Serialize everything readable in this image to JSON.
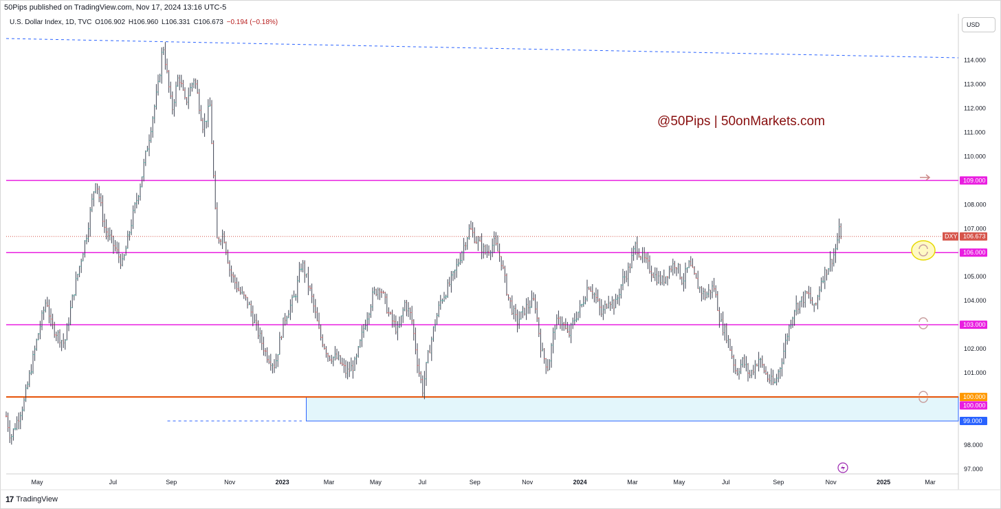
{
  "header": {
    "published_line": "50Pips published on TradingView.com, Nov 17, 2024 13:16 UTC-5"
  },
  "legend": {
    "symbol_line": "U.S. Dollar Index, 1D, TVC",
    "open": "O106.902",
    "high": "H106.960",
    "low": "L106.331",
    "close": "C106.673",
    "change": "−0.194 (−0.18%)"
  },
  "currency": "USD",
  "watermark": "@50Pips | 50onMarkets.com",
  "footer": {
    "brand": "TradingView",
    "logo": "17"
  },
  "colors": {
    "up": "#26a69a",
    "down": "#ef5350",
    "bar": "#3c4150",
    "magenta": "#e91ee0",
    "orange": "#e65100",
    "blue_trend": "#2962ff",
    "box_fill": "#e3f6fb",
    "box_border": "#2962ff",
    "price_tag": "#d6544a",
    "watermark": "#880e0e"
  },
  "chart_data": {
    "type": "ohlc",
    "symbol": "DXY",
    "last_price": "106.673",
    "ylim": [
      96.8,
      115.3
    ],
    "price_axis_labels": [
      "97.000",
      "98.000",
      "99.000",
      "100.000",
      "101.000",
      "102.000",
      "103.000",
      "104.000",
      "105.000",
      "106.000",
      "107.000",
      "108.000",
      "109.000",
      "110.000",
      "111.000",
      "112.000",
      "113.000",
      "114.000"
    ],
    "time_axis_labels": [
      "May",
      "Jul",
      "Sep",
      "Nov",
      "2023",
      "Mar",
      "May",
      "Jul",
      "Sep",
      "Nov",
      "2024",
      "Mar",
      "May",
      "Jul",
      "Sep",
      "Nov",
      "2025",
      "Mar"
    ],
    "time_axis_index": [
      0,
      1.3,
      2.3,
      3.3,
      4.2,
      5.0,
      5.8,
      6.6,
      7.5,
      8.4,
      9.3,
      10.2,
      11.0,
      11.8,
      12.7,
      13.6,
      14.5,
      15.3
    ],
    "horizontal_levels": [
      {
        "price": 109.0,
        "label": "109.000",
        "color": "magenta"
      },
      {
        "price": 106.0,
        "label": "106.000",
        "color": "magenta"
      },
      {
        "price": 103.0,
        "label": "103.000",
        "color": "magenta"
      },
      {
        "price": 100.0,
        "label": "100.000",
        "color": "magenta"
      },
      {
        "price": 100.0,
        "label": "100.000",
        "color": "orange"
      }
    ],
    "demand_zone": {
      "top": 100.0,
      "bottom": 99.0,
      "label": "99.000",
      "start_month_index": 6.7
    },
    "trendline": {
      "start": 114.9,
      "end": 114.1
    },
    "short_dashed": {
      "price": 99.0,
      "start_month_index": 3.6,
      "end_month_index": 6.6
    },
    "price_path": [
      [
        0,
        99.2
      ],
      [
        0.1,
        98.3
      ],
      [
        0.4,
        99.8
      ],
      [
        0.7,
        102.5
      ],
      [
        0.9,
        104.1
      ],
      [
        1.0,
        103.0
      ],
      [
        1.3,
        102.2
      ],
      [
        1.5,
        104.3
      ],
      [
        1.8,
        106.8
      ],
      [
        2.0,
        109.1
      ],
      [
        2.2,
        107.0
      ],
      [
        2.4,
        106.3
      ],
      [
        2.6,
        105.5
      ],
      [
        2.8,
        107.3
      ],
      [
        3.0,
        108.9
      ],
      [
        3.2,
        110.9
      ],
      [
        3.4,
        113.0
      ],
      [
        3.5,
        114.7
      ],
      [
        3.7,
        111.9
      ],
      [
        3.85,
        113.4
      ],
      [
        4.0,
        112.2
      ],
      [
        4.2,
        113.3
      ],
      [
        4.4,
        111.2
      ],
      [
        4.55,
        112.1
      ],
      [
        4.7,
        106.5
      ],
      [
        4.85,
        106.8
      ],
      [
        5.0,
        105.2
      ],
      [
        5.2,
        104.4
      ],
      [
        5.4,
        103.9
      ],
      [
        5.6,
        102.8
      ],
      [
        5.8,
        101.8
      ],
      [
        6.0,
        101.3
      ],
      [
        6.2,
        103.2
      ],
      [
        6.45,
        104.2
      ],
      [
        6.6,
        105.6
      ],
      [
        6.8,
        104.3
      ],
      [
        7.0,
        102.6
      ],
      [
        7.2,
        101.7
      ],
      [
        7.4,
        101.6
      ],
      [
        7.6,
        101.0
      ],
      [
        7.8,
        101.4
      ],
      [
        8.0,
        103.0
      ],
      [
        8.2,
        104.3
      ],
      [
        8.35,
        104.6
      ],
      [
        8.55,
        103.4
      ],
      [
        8.75,
        102.7
      ],
      [
        8.9,
        103.9
      ],
      [
        9.05,
        103.3
      ],
      [
        9.2,
        101.2
      ],
      [
        9.3,
        100.3
      ],
      [
        9.4,
        101.5
      ],
      [
        9.55,
        102.9
      ],
      [
        9.7,
        104.0
      ],
      [
        9.85,
        104.5
      ],
      [
        10.0,
        105.1
      ],
      [
        10.2,
        106.2
      ],
      [
        10.35,
        107.0
      ],
      [
        10.5,
        106.5
      ],
      [
        10.7,
        106.0
      ],
      [
        10.9,
        106.4
      ],
      [
        11.05,
        105.7
      ],
      [
        11.2,
        104.2
      ],
      [
        11.4,
        103.1
      ],
      [
        11.6,
        103.7
      ],
      [
        11.8,
        104.0
      ],
      [
        11.95,
        101.9
      ],
      [
        12.1,
        101.2
      ],
      [
        12.25,
        103.0
      ],
      [
        12.4,
        103.2
      ],
      [
        12.55,
        102.5
      ],
      [
        12.7,
        103.3
      ],
      [
        12.85,
        103.8
      ],
      [
        13.0,
        104.7
      ],
      [
        13.15,
        104.2
      ],
      [
        13.3,
        103.4
      ],
      [
        13.45,
        104.1
      ],
      [
        13.6,
        103.8
      ],
      [
        13.75,
        104.8
      ],
      [
        13.9,
        105.3
      ],
      [
        14.05,
        106.3
      ],
      [
        14.2,
        105.8
      ],
      [
        14.35,
        105.4
      ],
      [
        14.5,
        105.0
      ],
      [
        14.65,
        104.8
      ],
      [
        14.8,
        105.3
      ],
      [
        14.95,
        105.6
      ],
      [
        15.1,
        104.8
      ],
      [
        15.25,
        105.5
      ],
      [
        15.45,
        104.6
      ],
      [
        15.6,
        104.2
      ],
      [
        15.8,
        104.6
      ],
      [
        15.95,
        103.1
      ],
      [
        16.1,
        102.5
      ],
      [
        16.3,
        101.0
      ],
      [
        16.45,
        101.5
      ],
      [
        16.6,
        100.9
      ],
      [
        16.8,
        101.6
      ],
      [
        17.0,
        100.8
      ],
      [
        17.15,
        100.5
      ],
      [
        17.3,
        101.4
      ],
      [
        17.45,
        102.7
      ],
      [
        17.6,
        103.7
      ],
      [
        17.75,
        104.0
      ],
      [
        17.9,
        104.3
      ],
      [
        18.05,
        103.6
      ],
      [
        18.2,
        104.9
      ],
      [
        18.35,
        105.4
      ],
      [
        18.5,
        106.0
      ],
      [
        18.6,
        106.9
      ],
      [
        18.65,
        106.673
      ]
    ],
    "plot_months_total": 18.65
  }
}
